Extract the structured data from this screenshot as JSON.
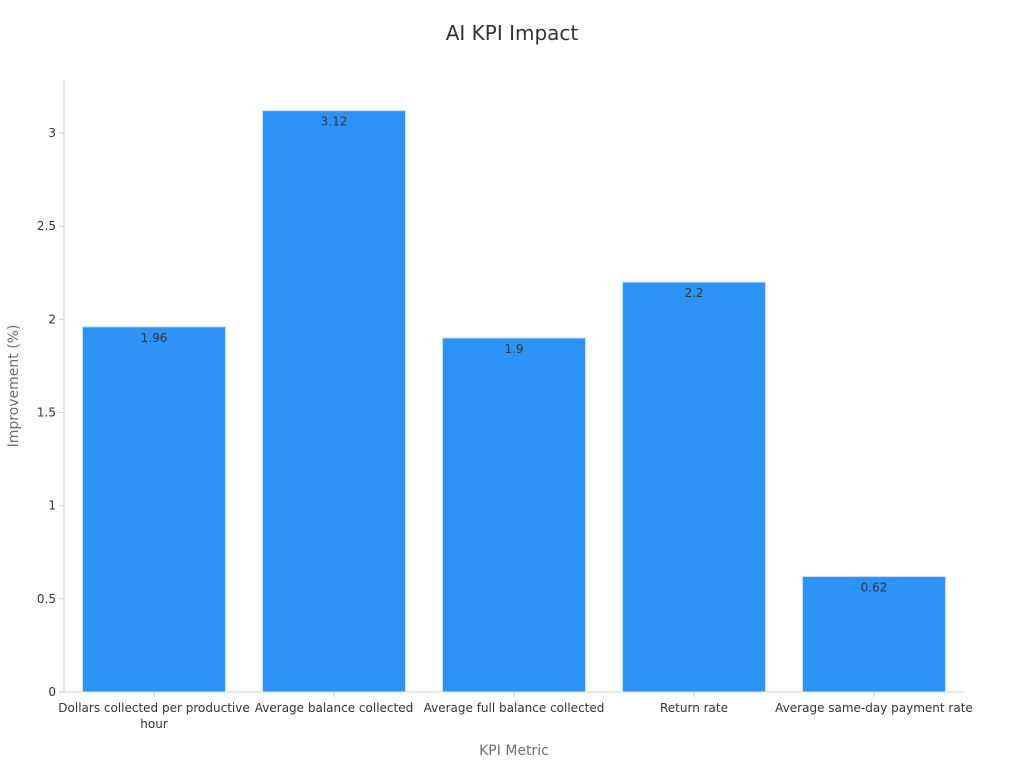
{
  "chart_data": {
    "type": "bar",
    "title": "AI KPI Impact",
    "xlabel": "KPI Metric",
    "ylabel": "Improvement (%)",
    "categories": [
      [
        "Dollars collected per productive",
        "hour"
      ],
      [
        "Average balance collected"
      ],
      [
        "Average full balance collected"
      ],
      [
        "Return rate"
      ],
      [
        "Average same-day payment rate"
      ]
    ],
    "values": [
      1.96,
      3.12,
      1.9,
      2.2,
      0.62
    ],
    "value_labels": [
      "1.96",
      "3.12",
      "1.9",
      "2.2",
      "0.62"
    ],
    "yticks": [
      0,
      0.5,
      1,
      1.5,
      2,
      2.5,
      3
    ],
    "ytick_labels": [
      "0",
      "0.5",
      "1",
      "1.5",
      "2",
      "2.5",
      "3"
    ],
    "ylim": [
      0,
      3.3
    ],
    "grid": false,
    "legend": "none",
    "colors": {
      "bar": "#2e93f7",
      "bar_edge": "#c9e2fb",
      "axis": "#cfcfcf",
      "text": "#333333",
      "axis_title": "#6e6e6e"
    }
  }
}
